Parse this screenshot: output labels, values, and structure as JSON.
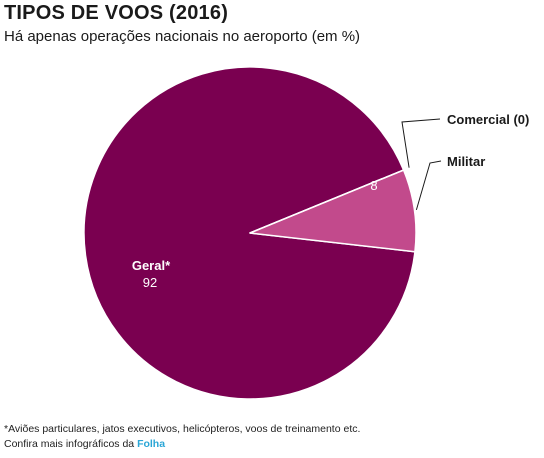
{
  "title": "TIPOS DE VOOS (2016)",
  "subtitle": "Há apenas operações nacionais no aeroporto (em %)",
  "chart_data": {
    "type": "pie",
    "title": "TIPOS DE VOOS (2016)",
    "subtitle": "Há apenas operações nacionais no aeroporto (em %)",
    "unit": "%",
    "slices": [
      {
        "name": "Comercial (0)",
        "value": 0,
        "color": "#7a0050"
      },
      {
        "name": "Militar",
        "value": 8,
        "value_label": "8",
        "color": "#c24a8c"
      },
      {
        "name": "Geral*",
        "value": 92,
        "value_label": "92",
        "color": "#7a0050"
      }
    ]
  },
  "footnote": "*Aviões particulares, jatos executivos, helicópteros, voos de treinamento etc.",
  "credit": {
    "prefix": "Confira mais infográficos da ",
    "brand": "Folha"
  }
}
